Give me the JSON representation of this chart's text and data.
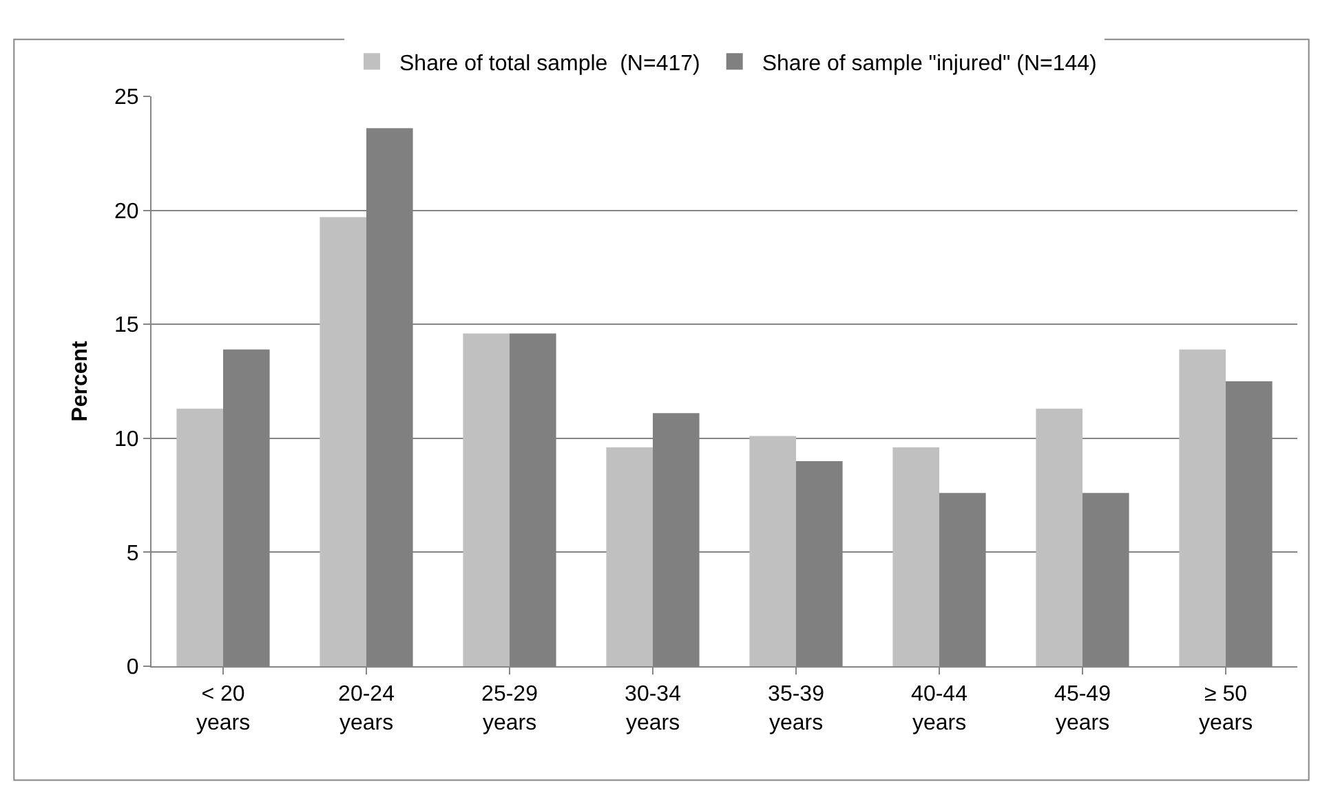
{
  "chart_data": {
    "type": "bar",
    "ylabel": "Percent",
    "categories": [
      "< 20\nyears",
      "20-24\nyears",
      "25-29\nyears",
      "30-34\nyears",
      "35-39\nyears",
      "40-44\nyears",
      "45-49\nyears",
      "≥ 50\nyears"
    ],
    "series": [
      {
        "name": "Share of total sample  (N=417)",
        "color": "#c0c0c0",
        "values": [
          11.3,
          19.7,
          14.6,
          9.6,
          10.1,
          9.6,
          11.3,
          13.9
        ]
      },
      {
        "name": "Share of sample \"injured\" (N=144)",
        "color": "#808080",
        "values": [
          13.9,
          23.6,
          14.6,
          11.1,
          9.0,
          7.6,
          7.6,
          12.5
        ]
      }
    ],
    "ylim": [
      0,
      25
    ],
    "yticks": [
      0,
      5,
      10,
      15,
      20,
      25
    ],
    "grid": "y",
    "legend": "top"
  }
}
